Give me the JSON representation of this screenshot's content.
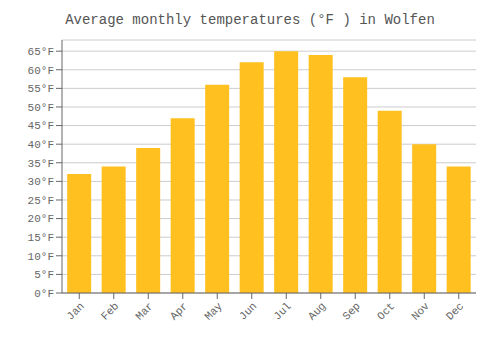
{
  "chart_data": {
    "type": "bar",
    "title": "Average monthly temperatures (°F ) in Wolfen",
    "categories": [
      "Jan",
      "Feb",
      "Mar",
      "Apr",
      "May",
      "Jun",
      "Jul",
      "Aug",
      "Sep",
      "Oct",
      "Nov",
      "Dec"
    ],
    "values": [
      32,
      34,
      39,
      47,
      56,
      62,
      65,
      64,
      58,
      49,
      40,
      34
    ],
    "color": "#FFC020",
    "ylim": [
      0,
      68
    ],
    "yticks": [
      {
        "value": 0,
        "label": "0°F"
      },
      {
        "value": 5,
        "label": "5°F"
      },
      {
        "value": 10,
        "label": "10°F"
      },
      {
        "value": 15,
        "label": "15°F"
      },
      {
        "value": 20,
        "label": "20°F"
      },
      {
        "value": 25,
        "label": "25°F"
      },
      {
        "value": 30,
        "label": "30°F"
      },
      {
        "value": 35,
        "label": "35°F"
      },
      {
        "value": 40,
        "label": "40°F"
      },
      {
        "value": 45,
        "label": "45°F"
      },
      {
        "value": 50,
        "label": "50°F"
      },
      {
        "value": 55,
        "label": "55°F"
      },
      {
        "value": 60,
        "label": "60°F"
      },
      {
        "value": 65,
        "label": "65°F"
      }
    ],
    "grid": true
  }
}
